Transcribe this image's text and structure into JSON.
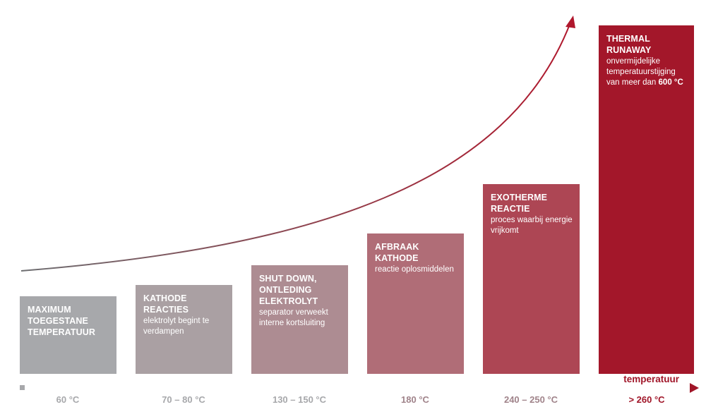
{
  "axis_title": "temperatuur",
  "colors": {
    "gray": "#a7a8ab",
    "red": "#a3172a",
    "axis_start": "#a7a8ab",
    "axis_end": "#a01528"
  },
  "stages": [
    {
      "title_lines": [
        "MAXIMUM",
        "TOEGESTANE",
        "TEMPERATUUR"
      ],
      "desc_lines": [],
      "temperature": "60 °C",
      "color": "#a7a8ab"
    },
    {
      "title_lines": [
        "KATHODE",
        "REACTIES"
      ],
      "desc_lines": [
        "elektrolyt begint te",
        "verdampen"
      ],
      "temperature": "70 – 80 °C",
      "color": "#aaa0a3"
    },
    {
      "title_lines": [
        "SHUT DOWN,",
        "ONTLEDING",
        "ELEKTROLYT"
      ],
      "desc_lines": [
        "separator verweekt",
        "interne kortsluiting"
      ],
      "temperature": "130 – 150 °C",
      "color": "#ad8c92"
    },
    {
      "title_lines": [
        "AFBRAAK",
        "KATHODE"
      ],
      "desc_lines": [
        "reactie oplosmiddelen"
      ],
      "temperature": "180 °C",
      "color": "#b06d77"
    },
    {
      "title_lines": [
        "EXOTHERME",
        "REACTIE"
      ],
      "desc_lines": [
        "proces waarbij energie",
        "vrijkomt"
      ],
      "temperature": "240 – 250 °C",
      "color": "#ad4654"
    },
    {
      "title_lines": [
        "THERMAL",
        "RUNAWAY"
      ],
      "desc_lines": [
        "onvermijdelijke",
        "temperatuurstijging",
        "van meer dan"
      ],
      "desc_emphasis": "600 °C",
      "temperature": "> 260 °C",
      "color": "#a3172a"
    }
  ]
}
